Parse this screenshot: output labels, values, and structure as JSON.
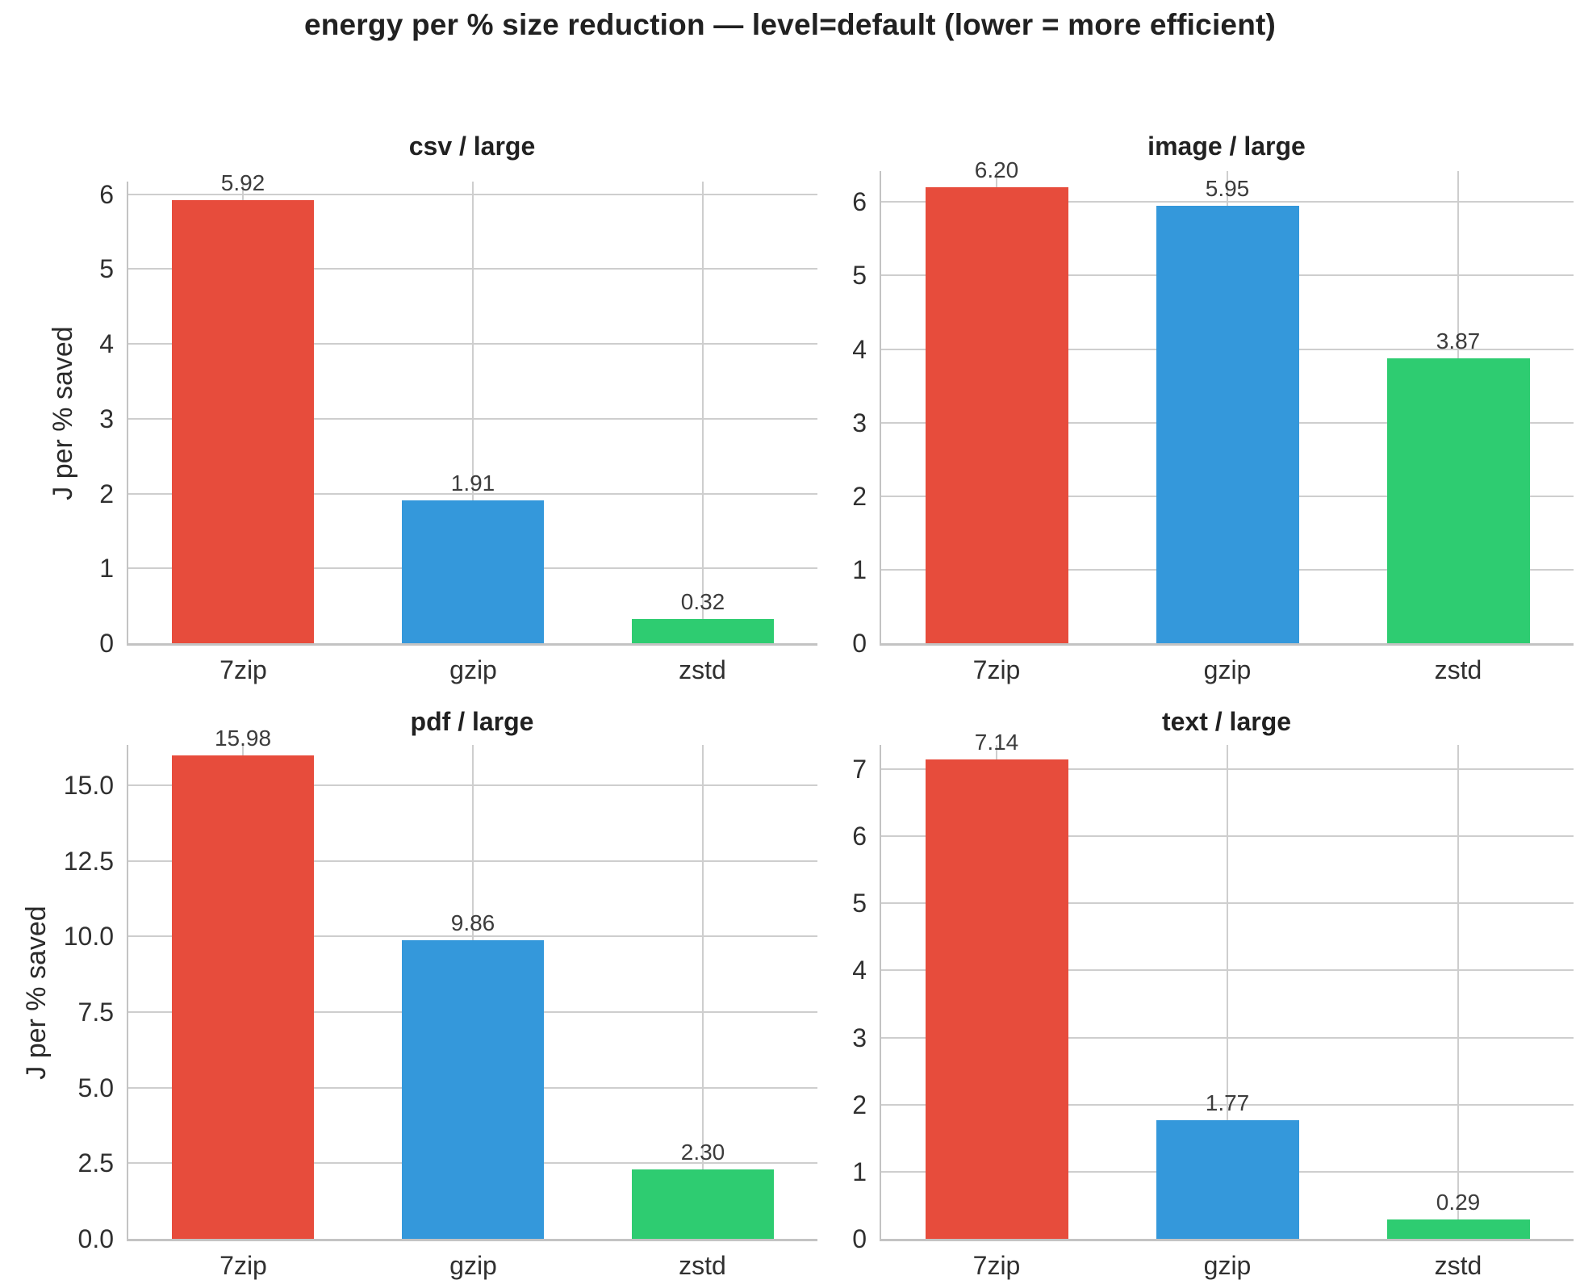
{
  "figure": {
    "title": "energy per % size reduction — level=default (lower = more efficient)",
    "background": "#ffffff",
    "grid_color": "#cecece",
    "spine_color": "#c3c3c3",
    "text_color": "#303030"
  },
  "ylabel": "J per % saved",
  "chart_data": [
    {
      "type": "bar",
      "title": "csv / large",
      "categories": [
        "7zip",
        "gzip",
        "zstd"
      ],
      "values": [
        5.92,
        1.91,
        0.32
      ],
      "value_labels": [
        "5.92",
        "1.91",
        "0.32"
      ],
      "bar_colors": [
        "#e74c3c",
        "#3498db",
        "#2ecc71"
      ],
      "ylabel": "J per % saved",
      "ylim": [
        0,
        6.17
      ],
      "yticks": [
        0,
        1,
        2,
        3,
        4,
        5,
        6
      ],
      "ytick_labels": [
        "0",
        "1",
        "2",
        "3",
        "4",
        "5",
        "6"
      ],
      "grid": true,
      "legend": false
    },
    {
      "type": "bar",
      "title": "image / large",
      "categories": [
        "7zip",
        "gzip",
        "zstd"
      ],
      "values": [
        6.2,
        5.95,
        3.87
      ],
      "value_labels": [
        "6.20",
        "5.95",
        "3.87"
      ],
      "bar_colors": [
        "#e74c3c",
        "#3498db",
        "#2ecc71"
      ],
      "ylabel": "",
      "ylim": [
        0,
        6.42
      ],
      "yticks": [
        0,
        1,
        2,
        3,
        4,
        5,
        6
      ],
      "ytick_labels": [
        "0",
        "1",
        "2",
        "3",
        "4",
        "5",
        "6"
      ],
      "grid": true,
      "legend": false
    },
    {
      "type": "bar",
      "title": "pdf / large",
      "categories": [
        "7zip",
        "gzip",
        "zstd"
      ],
      "values": [
        15.98,
        9.86,
        2.3
      ],
      "value_labels": [
        "15.98",
        "9.86",
        "2.30"
      ],
      "bar_colors": [
        "#e74c3c",
        "#3498db",
        "#2ecc71"
      ],
      "ylabel": "J per % saved",
      "ylim": [
        0,
        16.33
      ],
      "yticks": [
        0,
        2.5,
        5,
        7.5,
        10,
        12.5,
        15
      ],
      "ytick_labels": [
        "0.0",
        "2.5",
        "5.0",
        "7.5",
        "10.0",
        "12.5",
        "15.0"
      ],
      "grid": true,
      "legend": false
    },
    {
      "type": "bar",
      "title": "text / large",
      "categories": [
        "7zip",
        "gzip",
        "zstd"
      ],
      "values": [
        7.14,
        1.77,
        0.29
      ],
      "value_labels": [
        "7.14",
        "1.77",
        "0.29"
      ],
      "bar_colors": [
        "#e74c3c",
        "#3498db",
        "#2ecc71"
      ],
      "ylabel": "",
      "ylim": [
        0,
        7.36
      ],
      "yticks": [
        0,
        1,
        2,
        3,
        4,
        5,
        6,
        7
      ],
      "ytick_labels": [
        "0",
        "1",
        "2",
        "3",
        "4",
        "5",
        "6",
        "7"
      ],
      "grid": true,
      "legend": false
    }
  ]
}
